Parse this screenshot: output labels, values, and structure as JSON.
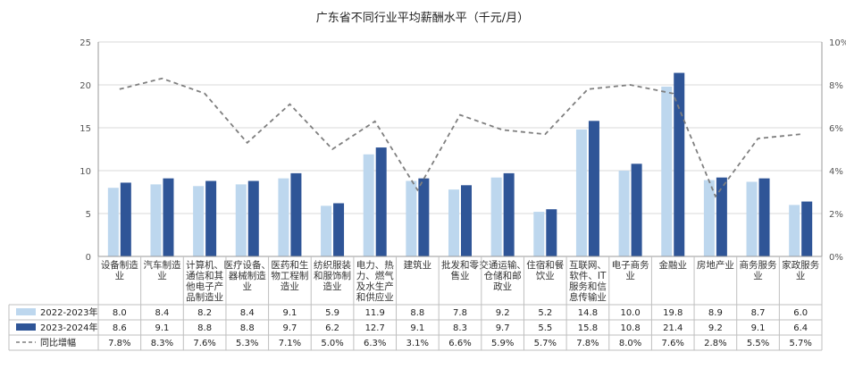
{
  "chart_data": {
    "type": "bar",
    "title": "广东省不同行业平均薪酬水平（千元/月）",
    "categories": [
      [
        "设备制造",
        "业"
      ],
      [
        "汽车制造",
        "业"
      ],
      [
        "计算机、",
        "通信和其",
        "他电子产",
        "品制造业"
      ],
      [
        "医疗设备、",
        "器械制造",
        "业"
      ],
      [
        "医药和生",
        "物工程制",
        "造业"
      ],
      [
        "纺织服装",
        "和服饰制",
        "造业"
      ],
      [
        "电力、热",
        "力、燃气",
        "及水生产",
        "和供应业"
      ],
      [
        "建筑业"
      ],
      [
        "批发和零",
        "售业"
      ],
      [
        "交通运输、",
        "仓储和邮",
        "政业"
      ],
      [
        "住宿和餐",
        "饮业"
      ],
      [
        "互联网、",
        "软件、IT",
        "服务和信",
        "息传输业"
      ],
      [
        "电子商务",
        "业"
      ],
      [
        "金融业"
      ],
      [
        "房地产业"
      ],
      [
        "商务服务",
        "业"
      ],
      [
        "家政服务",
        "业"
      ]
    ],
    "series": [
      {
        "name": "2022-2023年",
        "color": "#bdd7ee",
        "values": [
          8.0,
          8.4,
          8.2,
          8.4,
          9.1,
          5.9,
          11.9,
          8.8,
          7.8,
          9.2,
          5.2,
          14.8,
          10.0,
          19.8,
          8.9,
          8.7,
          6.0
        ],
        "labels": [
          "8.0",
          "8.4",
          "8.2",
          "8.4",
          "9.1",
          "5.9",
          "11.9",
          "8.8",
          "7.8",
          "9.2",
          "5.2",
          "14.8",
          "10.0",
          "19.8",
          "8.9",
          "8.7",
          "6.0"
        ]
      },
      {
        "name": "2023-2024年",
        "color": "#2f5597",
        "values": [
          8.6,
          9.1,
          8.8,
          8.8,
          9.7,
          6.2,
          12.7,
          9.1,
          8.3,
          9.7,
          5.5,
          15.8,
          10.8,
          21.4,
          9.2,
          9.1,
          6.4
        ],
        "labels": [
          "8.6",
          "9.1",
          "8.8",
          "8.8",
          "9.7",
          "6.2",
          "12.7",
          "9.1",
          "8.3",
          "9.7",
          "5.5",
          "15.8",
          "10.8",
          "21.4",
          "9.2",
          "9.1",
          "6.4"
        ]
      },
      {
        "name": "同比增幅",
        "type": "line",
        "axis": "right",
        "color": "#7f7f7f",
        "values": [
          7.8,
          8.3,
          7.6,
          5.3,
          7.1,
          5.0,
          6.3,
          3.1,
          6.6,
          5.9,
          5.7,
          7.8,
          8.0,
          7.6,
          2.8,
          5.5,
          5.7
        ],
        "labels": [
          "7.8%",
          "8.3%",
          "7.6%",
          "5.3%",
          "7.1%",
          "5.0%",
          "6.3%",
          "3.1%",
          "6.6%",
          "5.9%",
          "5.7%",
          "7.8%",
          "8.0%",
          "7.6%",
          "2.8%",
          "5.5%",
          "5.7%"
        ]
      }
    ],
    "ylim": [
      0,
      25
    ],
    "yticks": [
      "0",
      "5",
      "10",
      "15",
      "20",
      "25"
    ],
    "y2lim": [
      0,
      10
    ],
    "y2ticks": [
      "0%",
      "2%",
      "4%",
      "6%",
      "8%",
      "10%"
    ],
    "grid": true,
    "legend": "data-table"
  }
}
